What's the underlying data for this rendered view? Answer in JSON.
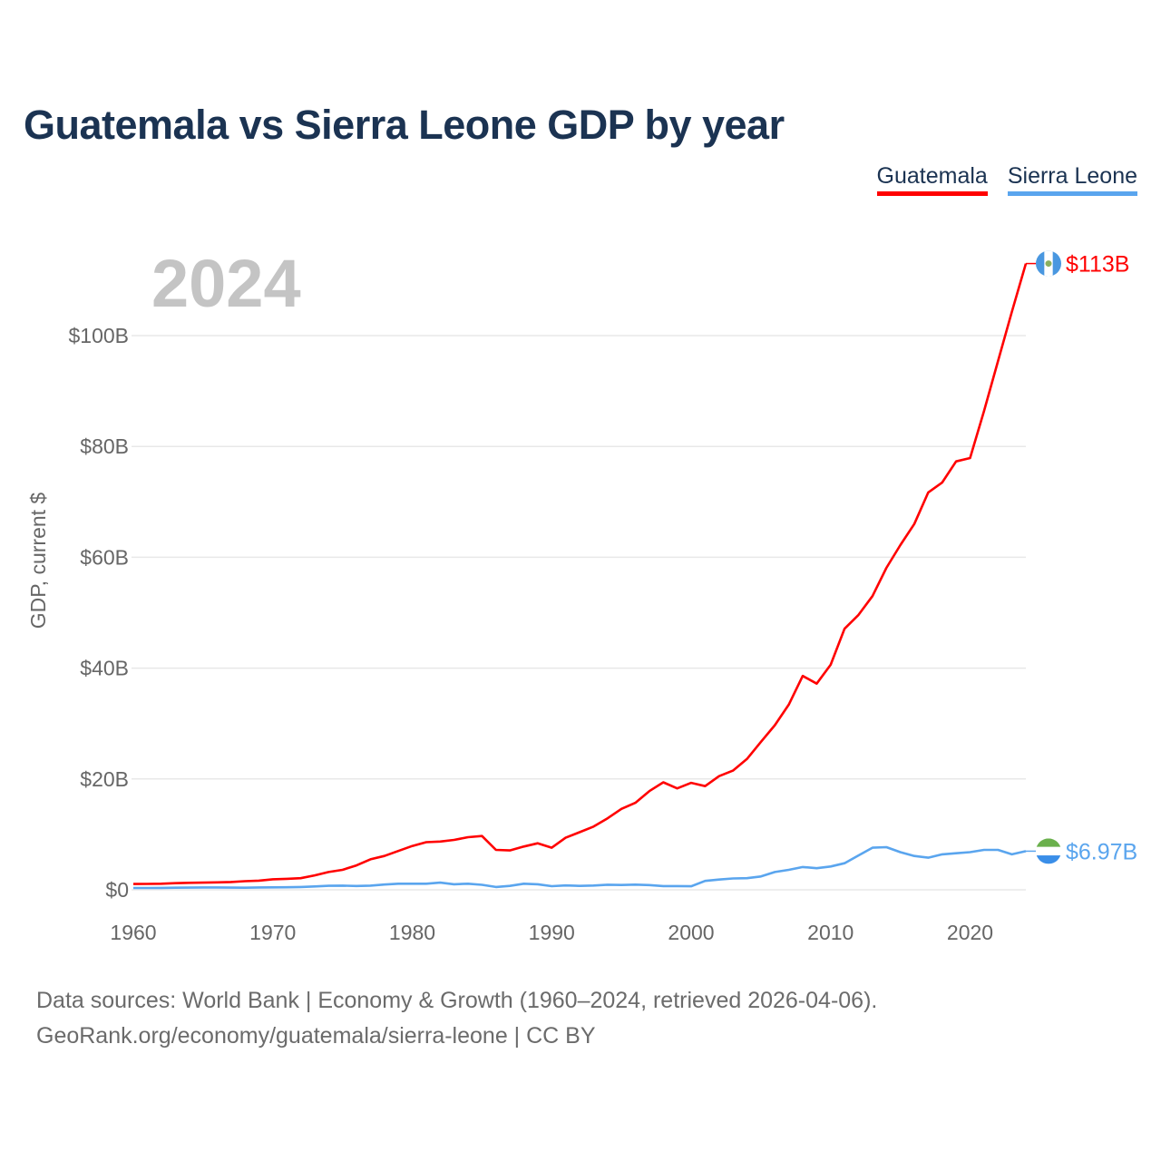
{
  "title": "Guatemala vs Sierra Leone GDP by year",
  "footer": {
    "line1": "Data sources: World Bank | Economy & Growth (1960–2024, retrieved 2026-04-06).",
    "line2": "GeoRank.org/economy/guatemala/sierra-leone | CC BY"
  },
  "chart_data": {
    "type": "line",
    "title": "Guatemala vs Sierra Leone GDP by year",
    "year_label": "2024",
    "xlabel": "",
    "ylabel": "GDP, current $",
    "xlim": [
      1960,
      2024
    ],
    "ylim": [
      0,
      113
    ],
    "x_ticks": [
      1960,
      1970,
      1980,
      1990,
      2000,
      2010,
      2020
    ],
    "x_tick_labels": [
      "1960",
      "1970",
      "1980",
      "1990",
      "2000",
      "2010",
      "2020"
    ],
    "y_ticks": [
      0,
      20,
      40,
      60,
      80,
      100
    ],
    "y_tick_labels": [
      "$0",
      "$20B",
      "$40B",
      "$60B",
      "$80B",
      "$100B"
    ],
    "grid": true,
    "legend_position": "top-right",
    "x": [
      1960,
      1961,
      1962,
      1963,
      1964,
      1965,
      1966,
      1967,
      1968,
      1969,
      1970,
      1971,
      1972,
      1973,
      1974,
      1975,
      1976,
      1977,
      1978,
      1979,
      1980,
      1981,
      1982,
      1983,
      1984,
      1985,
      1986,
      1987,
      1988,
      1989,
      1990,
      1991,
      1992,
      1993,
      1994,
      1995,
      1996,
      1997,
      1998,
      1999,
      2000,
      2001,
      2002,
      2003,
      2004,
      2005,
      2006,
      2007,
      2008,
      2009,
      2010,
      2011,
      2012,
      2013,
      2014,
      2015,
      2016,
      2017,
      2018,
      2019,
      2020,
      2021,
      2022,
      2023,
      2024
    ],
    "series": [
      {
        "name": "Guatemala",
        "color": "#ff0000",
        "end_label": "$113B",
        "flag": "guatemala-flag",
        "values": [
          1.04,
          1.07,
          1.1,
          1.2,
          1.26,
          1.3,
          1.35,
          1.4,
          1.55,
          1.65,
          1.9,
          1.98,
          2.1,
          2.6,
          3.2,
          3.6,
          4.4,
          5.5,
          6.1,
          7.0,
          7.9,
          8.6,
          8.7,
          9.0,
          9.5,
          9.7,
          7.2,
          7.1,
          7.8,
          8.4,
          7.6,
          9.4,
          10.4,
          11.4,
          12.9,
          14.6,
          15.7,
          17.8,
          19.4,
          18.3,
          19.3,
          18.7,
          20.5,
          21.5,
          23.6,
          26.7,
          29.7,
          33.4,
          38.6,
          37.2,
          40.6,
          47.1,
          49.6,
          53.0,
          58.1,
          62.2,
          66.0,
          71.7,
          73.5,
          77.3,
          77.9,
          86.4,
          95.4,
          104.3,
          113.0
        ]
      },
      {
        "name": "Sierra Leone",
        "color": "#5aa5ee",
        "end_label": "$6.97B",
        "flag": "sierra-leone-flag",
        "values": [
          0.32,
          0.33,
          0.35,
          0.37,
          0.4,
          0.42,
          0.43,
          0.4,
          0.37,
          0.42,
          0.45,
          0.46,
          0.5,
          0.6,
          0.72,
          0.75,
          0.68,
          0.75,
          0.95,
          1.1,
          1.1,
          1.1,
          1.3,
          1.0,
          1.1,
          0.9,
          0.5,
          0.7,
          1.1,
          1.0,
          0.65,
          0.78,
          0.7,
          0.77,
          0.92,
          0.87,
          0.94,
          0.85,
          0.67,
          0.67,
          0.64,
          1.6,
          1.85,
          2.05,
          2.1,
          2.4,
          3.2,
          3.6,
          4.1,
          3.9,
          4.2,
          4.8,
          6.2,
          7.6,
          7.7,
          6.8,
          6.1,
          5.8,
          6.4,
          6.6,
          6.8,
          7.2,
          7.2,
          6.4,
          6.97
        ]
      }
    ]
  }
}
